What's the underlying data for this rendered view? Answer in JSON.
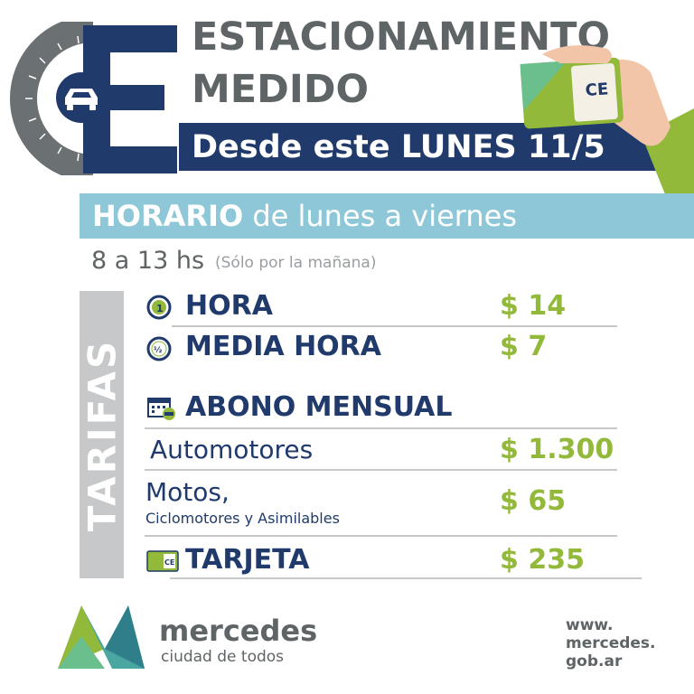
{
  "header": {
    "title_line1": "ESTACIONAMIENTO",
    "title_line2": "MEDIDO",
    "date_banner": "Desde este LUNES 11/5"
  },
  "horario": {
    "label_bold": "HORARIO",
    "label_rest": " de lunes a viernes",
    "hours": "8 a 13 hs",
    "note": "(Sólo por la mañana)"
  },
  "tarifas": {
    "vertical_label": "TARIFAS",
    "hora": {
      "label": "HORA",
      "price": "$ 14"
    },
    "media_hora": {
      "label": "MEDIA HORA",
      "price": "$ 7"
    },
    "abono": {
      "label": "ABONO MENSUAL"
    },
    "automotores": {
      "label": "Automotores",
      "price": "$ 1.300"
    },
    "motos": {
      "label": "Motos,",
      "sublabel": "Ciclomotores y Asimilables",
      "price": "$ 65"
    },
    "tarjeta": {
      "label": "TARJETA",
      "price": "$ 235"
    }
  },
  "footer": {
    "brand": "mercedes",
    "tagline": "ciudad de todos",
    "url_line1": "www.",
    "url_line2": "mercedes.",
    "url_line3": "gob.ar"
  },
  "colors": {
    "navy": "#1f3a6b",
    "gray": "#5f6466",
    "green": "#93b93b",
    "light_blue": "#8ec8d8",
    "light_gray": "#c6c8c9"
  },
  "icons": [
    "parking-logo-icon",
    "car-icon",
    "hand-card-icon",
    "clock-one-icon",
    "clock-half-icon",
    "calendar-car-icon",
    "card-icon",
    "mercedes-logo-icon"
  ]
}
